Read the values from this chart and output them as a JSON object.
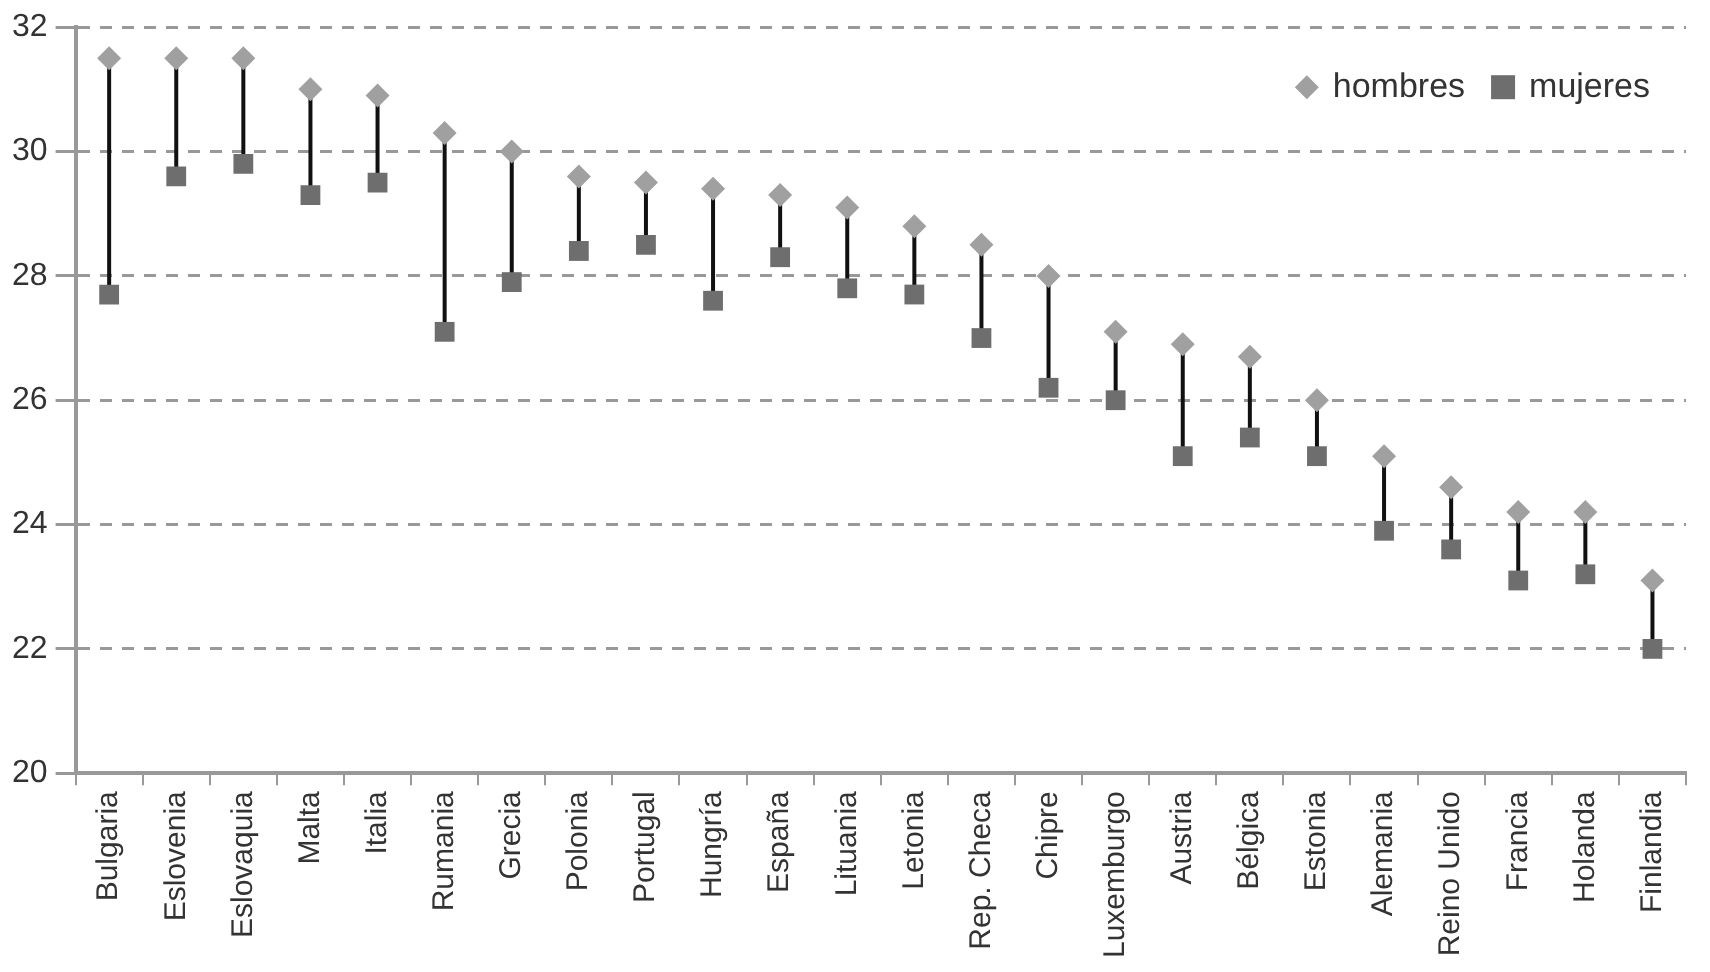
{
  "chart_data": {
    "type": "scatter",
    "categories": [
      "Bulgaria",
      "Eslovenia",
      "Eslovaquia",
      "Malta",
      "Italia",
      "Rumania",
      "Grecia",
      "Polonia",
      "Portugal",
      "Hungría",
      "España",
      "Lituania",
      "Letonia",
      "Rep. Checa",
      "Chipre",
      "Luxemburgo",
      "Austria",
      "Bélgica",
      "Estonia",
      "Alemania",
      "Reino Unido",
      "Francia",
      "Holanda",
      "Finlandia"
    ],
    "series": [
      {
        "name": "hombres",
        "marker": "diamond",
        "color": "#a0a0a0",
        "values": [
          31.5,
          31.5,
          31.5,
          31.0,
          30.9,
          30.3,
          30.0,
          29.6,
          29.5,
          29.4,
          29.3,
          29.1,
          28.8,
          28.5,
          28.0,
          27.1,
          26.9,
          26.7,
          26.0,
          25.1,
          24.6,
          24.2,
          24.2,
          23.1
        ]
      },
      {
        "name": "mujeres",
        "marker": "square",
        "color": "#6e6e6e",
        "values": [
          27.7,
          29.6,
          29.8,
          29.3,
          29.5,
          27.1,
          27.9,
          28.4,
          28.5,
          27.6,
          28.3,
          27.8,
          27.7,
          27.0,
          26.2,
          26.0,
          25.1,
          25.4,
          25.1,
          23.9,
          23.6,
          23.1,
          23.2,
          22.0
        ]
      }
    ],
    "ylim": [
      20,
      32
    ],
    "yticks": [
      20,
      22,
      24,
      26,
      28,
      30,
      32
    ],
    "grid": "y",
    "legend": "top right"
  }
}
